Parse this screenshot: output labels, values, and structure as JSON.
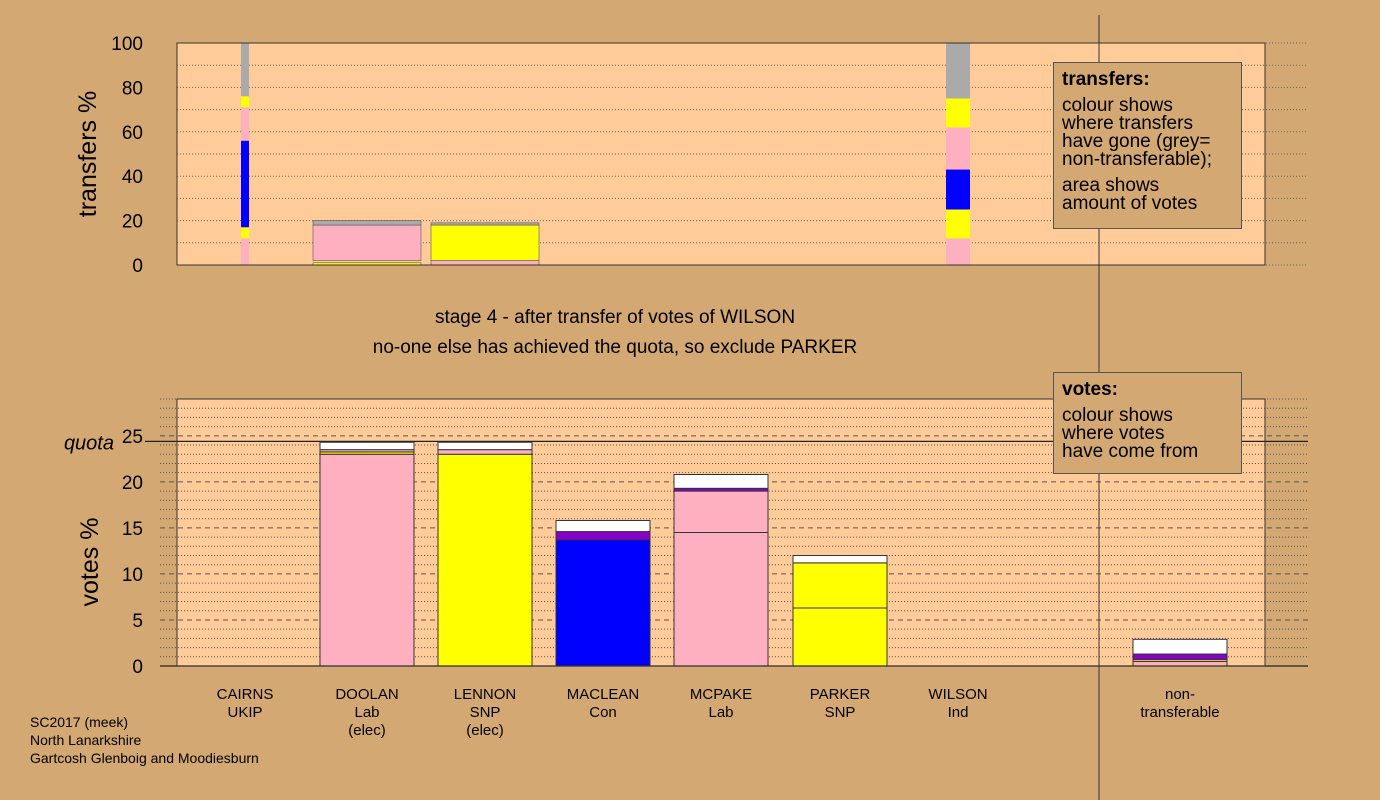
{
  "colors": {
    "background": "#d4a873",
    "plot_bg": "#ffcc99",
    "Lab": "#ffb0c0",
    "SNP": "#ffff00",
    "Con": "#0000ff",
    "UKIP": "#8800cc",
    "Ind": "#ffffff",
    "nontransferable": "#aaaaaa"
  },
  "chart_data": [
    {
      "type": "bar",
      "name": "transfers",
      "ylabel": "transfers %",
      "ylim": [
        0,
        100
      ],
      "yticks": [
        0,
        20,
        40,
        60,
        80,
        100
      ],
      "grid": true,
      "categories": [
        "CAIRNS",
        "DOOLAN",
        "LENNON",
        "MACLEAN",
        "MCPAKE",
        "PARKER",
        "WILSON"
      ],
      "thin_bars": [
        {
          "candidate": "CAIRNS",
          "segments": [
            {
              "party": "Lab",
              "from": 0,
              "to": 12
            },
            {
              "party": "SNP",
              "from": 12,
              "to": 17
            },
            {
              "party": "Con",
              "from": 17,
              "to": 56
            },
            {
              "party": "Lab",
              "from": 56,
              "to": 71
            },
            {
              "party": "SNP",
              "from": 71,
              "to": 76
            },
            {
              "party": "nontransferable",
              "from": 76,
              "to": 100
            }
          ]
        },
        {
          "candidate": "WILSON",
          "segments": [
            {
              "party": "Lab",
              "from": 0,
              "to": 12
            },
            {
              "party": "SNP",
              "from": 12,
              "to": 25
            },
            {
              "party": "Con",
              "from": 25,
              "to": 43
            },
            {
              "party": "Lab",
              "from": 43,
              "to": 62
            },
            {
              "party": "SNP",
              "from": 62,
              "to": 75
            },
            {
              "party": "nontransferable",
              "from": 75,
              "to": 100
            }
          ]
        }
      ],
      "wide_bars": [
        {
          "candidate": "DOOLAN",
          "segments": [
            {
              "party": "SNP",
              "from": 0,
              "to": 1
            },
            {
              "party": "Lab",
              "from": 2,
              "to": 18
            },
            {
              "party": "nontransferable",
              "from": 18,
              "to": 20
            }
          ]
        },
        {
          "candidate": "LENNON",
          "segments": [
            {
              "party": "Lab",
              "from": 0,
              "to": 2
            },
            {
              "party": "SNP",
              "from": 2,
              "to": 18
            },
            {
              "party": "nontransferable",
              "from": 18,
              "to": 19
            }
          ]
        }
      ]
    },
    {
      "type": "bar",
      "name": "votes",
      "ylabel": "votes %",
      "ylim": [
        0,
        30
      ],
      "yticks": [
        0,
        5,
        10,
        15,
        20,
        25
      ],
      "quota": 24.4,
      "quota_label": "quota",
      "grid": true,
      "bars": [
        {
          "name": "CAIRNS",
          "party": "UKIP",
          "segments": []
        },
        {
          "name": "DOOLAN",
          "party": "Lab",
          "elected": true,
          "segments": [
            {
              "party": "Lab",
              "value": 23.0
            },
            {
              "party": "SNP",
              "value": 0.25
            },
            {
              "party": "Lab",
              "value": 0.25
            },
            {
              "party": "Ind",
              "value": 0.8
            }
          ]
        },
        {
          "name": "LENNON",
          "party": "SNP",
          "elected": true,
          "segments": [
            {
              "party": "SNP",
              "value": 23.0
            },
            {
              "party": "Lab",
              "value": 0.5
            },
            {
              "party": "Ind",
              "value": 0.8
            }
          ]
        },
        {
          "name": "MACLEAN",
          "party": "Con",
          "segments": [
            {
              "party": "Con",
              "value": 13.7
            },
            {
              "party": "UKIP",
              "value": 0.9
            },
            {
              "party": "Ind",
              "value": 1.2
            }
          ]
        },
        {
          "name": "MCPAKE",
          "party": "Lab",
          "segments": [
            {
              "party": "Lab",
              "value": 14.5
            },
            {
              "party": "Lab",
              "value": 4.5
            },
            {
              "party": "UKIP",
              "value": 0.3
            },
            {
              "party": "Ind",
              "value": 1.5
            }
          ]
        },
        {
          "name": "PARKER",
          "party": "SNP",
          "segments": [
            {
              "party": "SNP",
              "value": 6.3
            },
            {
              "party": "SNP",
              "value": 4.9
            },
            {
              "party": "Ind",
              "value": 0.8
            }
          ]
        },
        {
          "name": "WILSON",
          "party": "Ind",
          "segments": []
        },
        {
          "name": "non-transferable",
          "party": "nontransferable",
          "segments": [
            {
              "party": "Lab",
              "value": 0.5
            },
            {
              "party": "SNP",
              "value": 0.2
            },
            {
              "party": "UKIP",
              "value": 0.6
            },
            {
              "party": "Ind",
              "value": 1.6
            }
          ]
        }
      ]
    }
  ],
  "x_labels": [
    {
      "line1": "CAIRNS",
      "line2": "UKIP",
      "line3": ""
    },
    {
      "line1": "DOOLAN",
      "line2": "Lab",
      "line3": "(elec)"
    },
    {
      "line1": "LENNON",
      "line2": "SNP",
      "line3": "(elec)"
    },
    {
      "line1": "MACLEAN",
      "line2": "Con",
      "line3": ""
    },
    {
      "line1": "MCPAKE",
      "line2": "Lab",
      "line3": ""
    },
    {
      "line1": "PARKER",
      "line2": "SNP",
      "line3": ""
    },
    {
      "line1": "WILSON",
      "line2": "Ind",
      "line3": ""
    },
    {
      "line1": "non-",
      "line2": "transferable",
      "line3": ""
    }
  ],
  "transfers_box": {
    "heading": "transfers:",
    "line1": "colour shows",
    "line2": "where transfers",
    "line3": "have gone (grey=",
    "line4": "non-transferable);",
    "line5": "area shows",
    "line6": "amount of votes"
  },
  "votes_box": {
    "heading": "votes:",
    "line1": "colour shows",
    "line2": "where votes",
    "line3": "have come from"
  },
  "stage": {
    "line1": "stage 4 - after transfer of votes of WILSON",
    "line2": "no-one else has achieved the quota, so exclude PARKER"
  },
  "footer": {
    "line1": "SC2017 (meek)",
    "line2": "North Lanarkshire",
    "line3": "Gartcosh Glenboig and Moodiesburn"
  }
}
